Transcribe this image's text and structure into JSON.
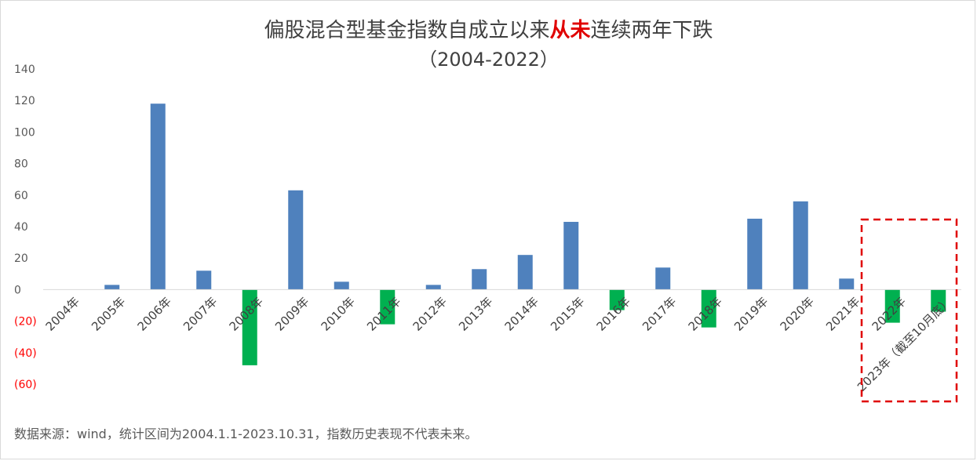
{
  "title": {
    "prefix": "偏股混合型基金指数自成立以来",
    "highlight": "从未",
    "suffix": "连续两年下跌",
    "subtitle": "（2004-2022）"
  },
  "source_note": "数据来源：wind，统计区间为2004.1.1-2023.10.31，指数历史表现不代表未来。",
  "colors": {
    "positive": "#4F81BD",
    "negative": "#00B050",
    "negative_tick": "#FF0000",
    "highlight_box": "#E00000"
  },
  "chart_data": {
    "type": "bar",
    "categories": [
      "2004年",
      "2005年",
      "2006年",
      "2007年",
      "2008年",
      "2009年",
      "2010年",
      "2011年",
      "2012年",
      "2013年",
      "2014年",
      "2015年",
      "2016年",
      "2017年",
      "2018年",
      "2019年",
      "2020年",
      "2021年",
      "2022年",
      "2023年（截至10月底）"
    ],
    "values": [
      0,
      3,
      118,
      12,
      -48,
      63,
      5,
      -22,
      3,
      13,
      22,
      43,
      -13,
      14,
      -24,
      45,
      56,
      7,
      -21,
      -14
    ],
    "ylim": [
      -60,
      140
    ],
    "yticks": [
      "140",
      "120",
      "100",
      "80",
      "60",
      "40",
      "20",
      "0",
      "(20)",
      "(40)",
      "(60)"
    ],
    "highlighted_categories": [
      "2022年",
      "2023年（截至10月底）"
    ],
    "grid": false,
    "legend": "none"
  }
}
